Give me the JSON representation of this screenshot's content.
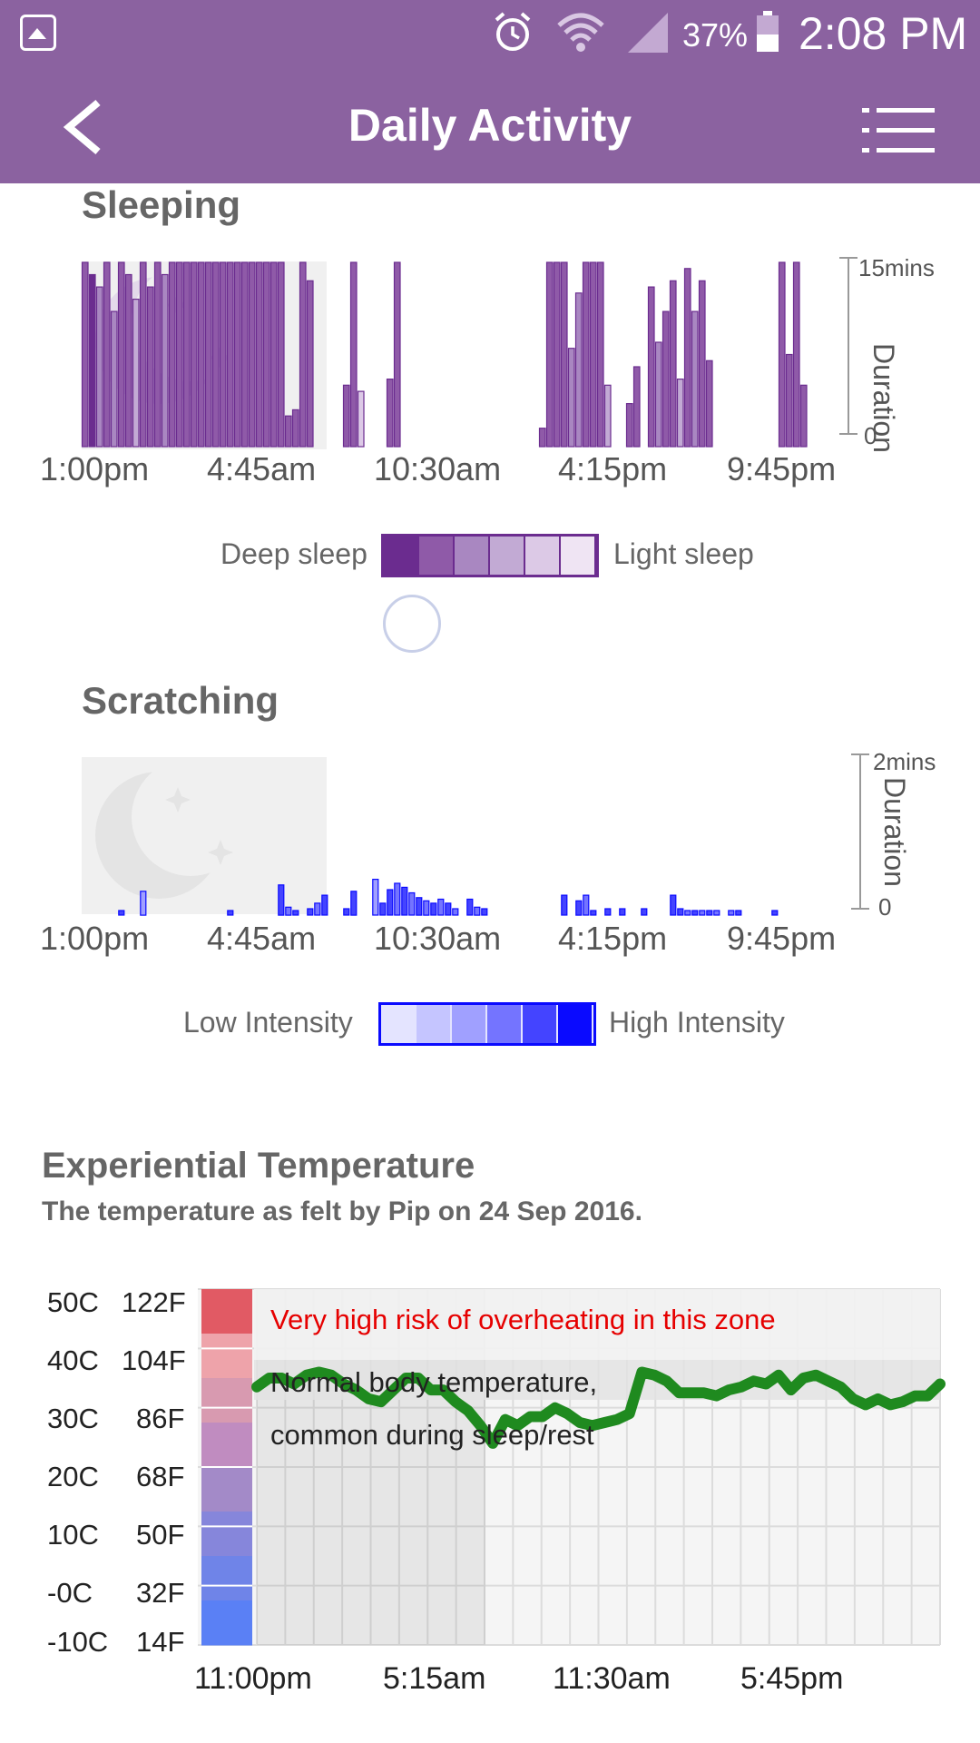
{
  "status_bar": {
    "battery_percent": "37%",
    "time": "2:08 PM",
    "icons": [
      "gallery-icon",
      "alarm-icon",
      "wifi-icon",
      "signal-icon",
      "battery-icon"
    ]
  },
  "app_bar": {
    "title": "Daily Activity",
    "back_icon": "chevron-left-icon",
    "menu_icon": "menu-icon"
  },
  "sleeping": {
    "title": "Sleeping",
    "y_max_label": "15mins",
    "y_min_label": "0",
    "y_axis_label": "Duration",
    "x_ticks": [
      "1:00pm",
      "4:45am",
      "10:30am",
      "4:15pm",
      "9:45pm"
    ],
    "legend_low": "Deep sleep",
    "legend_high": "Light sleep",
    "legend_colors": [
      "#6b2c8f",
      "#8f5aa8",
      "#a987c1",
      "#c2aad4",
      "#dcc9e6",
      "#efe4f3"
    ]
  },
  "scratching": {
    "title": "Scratching",
    "y_max_label": "2mins",
    "y_min_label": "0",
    "y_axis_label": "Duration",
    "x_ticks": [
      "1:00pm",
      "4:45am",
      "10:30am",
      "4:15pm",
      "9:45pm"
    ],
    "legend_low": "Low Intensity",
    "legend_high": "High Intensity",
    "legend_colors": [
      "#e4e4ff",
      "#c5c5ff",
      "#a0a0ff",
      "#7474ff",
      "#4444ff",
      "#0a0aff"
    ]
  },
  "temperature": {
    "title": "Experiential Temperature",
    "subtitle": "The temperature as felt by Pip on 24 Sep 2016.",
    "celsius_ticks": [
      "50C",
      "40C",
      "30C",
      "20C",
      "10C",
      "-0C",
      "-10C"
    ],
    "fahrenheit_ticks": [
      "122F",
      "104F",
      "86F",
      "68F",
      "50F",
      "32F",
      "14F"
    ],
    "x_ticks": [
      "11:00pm",
      "5:15am",
      "11:30am",
      "5:45pm"
    ],
    "zone_high_text": "Very high risk of overheating in this zone",
    "zone_normal_line1": "Normal body temperature,",
    "zone_normal_line2": "common during sleep/rest",
    "line_color": "#1f8a1f",
    "zone_high_color": "#e60000"
  },
  "chart_data": [
    {
      "type": "bar",
      "title": "Sleeping",
      "ylabel": "Duration",
      "ylim": [
        0,
        15
      ],
      "y_unit": "mins",
      "x_tick_labels": [
        "1:00pm",
        "4:45am",
        "10:30am",
        "4:15pm",
        "9:45pm"
      ],
      "bars": [
        {
          "t": 0,
          "v": 15,
          "s": 1
        },
        {
          "t": 1,
          "v": 14,
          "s": 0
        },
        {
          "t": 2,
          "v": 13,
          "s": 2
        },
        {
          "t": 3,
          "v": 15,
          "s": 1
        },
        {
          "t": 4,
          "v": 11,
          "s": 2
        },
        {
          "t": 5,
          "v": 15,
          "s": 1
        },
        {
          "t": 6,
          "v": 14,
          "s": 1
        },
        {
          "t": 7,
          "v": 12,
          "s": 3
        },
        {
          "t": 8,
          "v": 15,
          "s": 1
        },
        {
          "t": 9,
          "v": 13,
          "s": 1
        },
        {
          "t": 10,
          "v": 15,
          "s": 1
        },
        {
          "t": 11,
          "v": 14,
          "s": 2
        },
        {
          "t": 12,
          "v": 15,
          "s": 1
        },
        {
          "t": 13,
          "v": 15,
          "s": 1
        },
        {
          "t": 14,
          "v": 15,
          "s": 1
        },
        {
          "t": 15,
          "v": 15,
          "s": 1
        },
        {
          "t": 16,
          "v": 15,
          "s": 1
        },
        {
          "t": 17,
          "v": 15,
          "s": 1
        },
        {
          "t": 18,
          "v": 15,
          "s": 1
        },
        {
          "t": 19,
          "v": 15,
          "s": 1
        },
        {
          "t": 20,
          "v": 15,
          "s": 1
        },
        {
          "t": 21,
          "v": 15,
          "s": 1
        },
        {
          "t": 22,
          "v": 15,
          "s": 1
        },
        {
          "t": 23,
          "v": 15,
          "s": 1
        },
        {
          "t": 24,
          "v": 15,
          "s": 1
        },
        {
          "t": 25,
          "v": 15,
          "s": 1
        },
        {
          "t": 26,
          "v": 15,
          "s": 1
        },
        {
          "t": 27,
          "v": 15,
          "s": 1
        },
        {
          "t": 28,
          "v": 2.5,
          "s": 1
        },
        {
          "t": 29,
          "v": 3,
          "s": 1
        },
        {
          "t": 30,
          "v": 15,
          "s": 1
        },
        {
          "t": 31,
          "v": 13.5,
          "s": 1
        },
        {
          "t": 36,
          "v": 5,
          "s": 1
        },
        {
          "t": 37,
          "v": 15,
          "s": 1
        },
        {
          "t": 38,
          "v": 4.5,
          "s": 4
        },
        {
          "t": 42,
          "v": 5.5,
          "s": 1
        },
        {
          "t": 43,
          "v": 15,
          "s": 1
        },
        {
          "t": 63,
          "v": 1.5,
          "s": 1
        },
        {
          "t": 64,
          "v": 15,
          "s": 1
        },
        {
          "t": 65,
          "v": 15,
          "s": 1
        },
        {
          "t": 66,
          "v": 15,
          "s": 1
        },
        {
          "t": 67,
          "v": 8,
          "s": 2
        },
        {
          "t": 68,
          "v": 12.5,
          "s": 2
        },
        {
          "t": 69,
          "v": 15,
          "s": 1
        },
        {
          "t": 70,
          "v": 15,
          "s": 1
        },
        {
          "t": 71,
          "v": 15,
          "s": 1
        },
        {
          "t": 72,
          "v": 5,
          "s": 3
        },
        {
          "t": 75,
          "v": 3.5,
          "s": 1
        },
        {
          "t": 76,
          "v": 6.5,
          "s": 1
        },
        {
          "t": 78,
          "v": 13,
          "s": 1
        },
        {
          "t": 79,
          "v": 8.5,
          "s": 2
        },
        {
          "t": 80,
          "v": 11,
          "s": 1
        },
        {
          "t": 81,
          "v": 13.5,
          "s": 1
        },
        {
          "t": 82,
          "v": 5.5,
          "s": 3
        },
        {
          "t": 83,
          "v": 14.5,
          "s": 1
        },
        {
          "t": 84,
          "v": 11,
          "s": 2
        },
        {
          "t": 85,
          "v": 13.5,
          "s": 1
        },
        {
          "t": 86,
          "v": 7,
          "s": 1
        },
        {
          "t": 96,
          "v": 15,
          "s": 1
        },
        {
          "t": 97,
          "v": 7.5,
          "s": 1
        },
        {
          "t": 98,
          "v": 15,
          "s": 1
        },
        {
          "t": 99,
          "v": 5,
          "s": 1
        }
      ]
    },
    {
      "type": "bar",
      "title": "Scratching",
      "ylabel": "Duration",
      "ylim": [
        0,
        2
      ],
      "y_unit": "mins",
      "x_tick_labels": [
        "1:00pm",
        "4:45am",
        "10:30am",
        "4:15pm",
        "9:45pm"
      ],
      "bars": [
        {
          "t": 5,
          "v": 0.05,
          "s": 4
        },
        {
          "t": 8,
          "v": 0.3,
          "s": 2
        },
        {
          "t": 20,
          "v": 0.05,
          "s": 4
        },
        {
          "t": 27,
          "v": 0.38,
          "s": 4
        },
        {
          "t": 28,
          "v": 0.1,
          "s": 3
        },
        {
          "t": 29,
          "v": 0.05,
          "s": 4
        },
        {
          "t": 31,
          "v": 0.08,
          "s": 4
        },
        {
          "t": 32,
          "v": 0.15,
          "s": 3
        },
        {
          "t": 33,
          "v": 0.25,
          "s": 4
        },
        {
          "t": 36,
          "v": 0.08,
          "s": 4
        },
        {
          "t": 37,
          "v": 0.3,
          "s": 4
        },
        {
          "t": 40,
          "v": 0.45,
          "s": 2
        },
        {
          "t": 41,
          "v": 0.15,
          "s": 4
        },
        {
          "t": 42,
          "v": 0.32,
          "s": 4
        },
        {
          "t": 43,
          "v": 0.4,
          "s": 3
        },
        {
          "t": 44,
          "v": 0.35,
          "s": 4
        },
        {
          "t": 45,
          "v": 0.28,
          "s": 3
        },
        {
          "t": 46,
          "v": 0.22,
          "s": 4
        },
        {
          "t": 47,
          "v": 0.18,
          "s": 3
        },
        {
          "t": 48,
          "v": 0.15,
          "s": 4
        },
        {
          "t": 49,
          "v": 0.2,
          "s": 3
        },
        {
          "t": 50,
          "v": 0.15,
          "s": 4
        },
        {
          "t": 51,
          "v": 0.08,
          "s": 3
        },
        {
          "t": 53,
          "v": 0.2,
          "s": 4
        },
        {
          "t": 54,
          "v": 0.1,
          "s": 3
        },
        {
          "t": 55,
          "v": 0.08,
          "s": 4
        },
        {
          "t": 66,
          "v": 0.25,
          "s": 4
        },
        {
          "t": 68,
          "v": 0.18,
          "s": 4
        },
        {
          "t": 69,
          "v": 0.25,
          "s": 3
        },
        {
          "t": 70,
          "v": 0.05,
          "s": 4
        },
        {
          "t": 72,
          "v": 0.08,
          "s": 4
        },
        {
          "t": 74,
          "v": 0.08,
          "s": 4
        },
        {
          "t": 77,
          "v": 0.08,
          "s": 4
        },
        {
          "t": 81,
          "v": 0.25,
          "s": 4
        },
        {
          "t": 82,
          "v": 0.08,
          "s": 4
        },
        {
          "t": 83,
          "v": 0.05,
          "s": 3
        },
        {
          "t": 84,
          "v": 0.05,
          "s": 4
        },
        {
          "t": 85,
          "v": 0.05,
          "s": 3
        },
        {
          "t": 86,
          "v": 0.05,
          "s": 4
        },
        {
          "t": 87,
          "v": 0.05,
          "s": 3
        },
        {
          "t": 89,
          "v": 0.05,
          "s": 3
        },
        {
          "t": 90,
          "v": 0.05,
          "s": 4
        },
        {
          "t": 95,
          "v": 0.05,
          "s": 4
        }
      ]
    },
    {
      "type": "line",
      "title": "Experiential Temperature",
      "y_unit": "C",
      "ylim": [
        -10,
        50
      ],
      "x_tick_labels": [
        "11:00pm",
        "5:15am",
        "11:30am",
        "5:45pm"
      ],
      "points": [
        [
          0,
          33.5
        ],
        [
          1,
          35
        ],
        [
          2,
          35
        ],
        [
          3,
          34
        ],
        [
          4,
          35.5
        ],
        [
          5,
          36
        ],
        [
          6,
          35.5
        ],
        [
          7,
          34
        ],
        [
          8,
          33
        ],
        [
          9,
          31.5
        ],
        [
          10,
          31
        ],
        [
          11,
          33
        ],
        [
          12,
          35
        ],
        [
          13,
          35
        ],
        [
          14,
          33
        ],
        [
          15,
          33
        ],
        [
          16,
          31
        ],
        [
          17,
          29.5
        ],
        [
          18,
          27
        ],
        [
          19,
          24
        ],
        [
          20,
          28
        ],
        [
          21,
          27
        ],
        [
          22,
          28.5
        ],
        [
          23,
          28.5
        ],
        [
          24,
          30
        ],
        [
          25,
          29
        ],
        [
          26,
          27.5
        ],
        [
          27,
          27
        ],
        [
          28,
          27.5
        ],
        [
          29,
          28
        ],
        [
          30,
          29
        ],
        [
          31,
          36
        ],
        [
          32,
          35.5
        ],
        [
          33,
          34.5
        ],
        [
          34,
          32.5
        ],
        [
          35,
          32.5
        ],
        [
          36,
          32.5
        ],
        [
          37,
          32
        ],
        [
          38,
          33
        ],
        [
          39,
          33.5
        ],
        [
          40,
          34.5
        ],
        [
          41,
          34
        ],
        [
          42,
          35.5
        ],
        [
          43,
          33
        ],
        [
          44,
          35
        ],
        [
          45,
          35.5
        ],
        [
          46,
          34.5
        ],
        [
          47,
          33.5
        ],
        [
          48,
          31.5
        ],
        [
          49,
          30.5
        ],
        [
          50,
          31.5
        ],
        [
          51,
          30.5
        ],
        [
          52,
          31
        ],
        [
          53,
          32
        ],
        [
          54,
          32
        ],
        [
          55,
          34
        ]
      ]
    }
  ]
}
